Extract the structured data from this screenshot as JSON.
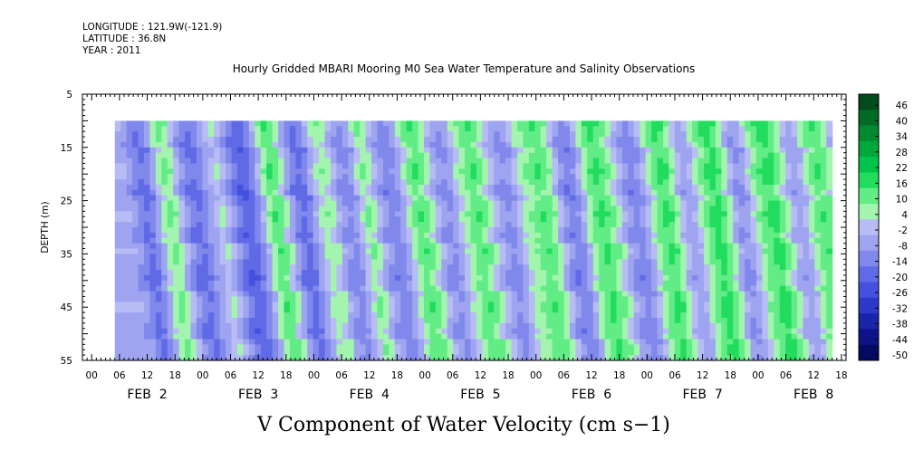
{
  "meta": {
    "longitude": "LONGITUDE : 121.9W(-121.9)",
    "latitude": "LATITUDE : 36.8N",
    "year": "YEAR : 2011"
  },
  "chart_data": {
    "type": "heatmap",
    "title": "Hourly Gridded MBARI Mooring M0 Sea Water Temperature and Salinity Observations",
    "bottom_title": "V Component of Water Velocity (cm s−1)",
    "ylabel": "DEPTH (m)",
    "y_ticks": [
      "5",
      "15",
      "25",
      "35",
      "45",
      "55"
    ],
    "y_range": [
      5,
      55
    ],
    "y_inverted": true,
    "data_depth_range": [
      10,
      55
    ],
    "x_hour_labels": [
      "00",
      "06",
      "12",
      "18",
      "00",
      "06",
      "12",
      "18",
      "00",
      "06",
      "12",
      "18",
      "00",
      "06",
      "12",
      "18",
      "00",
      "06",
      "12",
      "18",
      "00",
      "06",
      "12",
      "18",
      "00",
      "06",
      "12",
      "18"
    ],
    "x_day_labels": [
      "FEB  2",
      "FEB  3",
      "FEB  4",
      "FEB  5",
      "FEB  6",
      "FEB  7",
      "FEB  8"
    ],
    "x_range_hours": [
      -2,
      163
    ],
    "data_time_range_hours": [
      5,
      160
    ],
    "colorbar_labels": [
      "46",
      "40",
      "34",
      "28",
      "22",
      "16",
      "10",
      "4",
      "-2",
      "-8",
      "-14",
      "-20",
      "-26",
      "-32",
      "-38",
      "-44",
      "-50"
    ],
    "colorbar_colors": [
      "#004a1c",
      "#006b26",
      "#008a30",
      "#00a83a",
      "#00c44a",
      "#22dc5e",
      "#62ec86",
      "#a2f4ae",
      "#b8bcf4",
      "#9ea4f0",
      "#8088ec",
      "#606ae6",
      "#4450de",
      "#2c38c8",
      "#1a24a8",
      "#0c1488",
      "#040a60"
    ],
    "colorbar_range": [
      -50,
      50
    ],
    "colorbar_step": 6,
    "field_columns_v": [
      -4,
      -8,
      -12,
      -16,
      -13,
      -6,
      4,
      9,
      6,
      -2,
      -9,
      -14,
      -16,
      -12,
      -6,
      -2,
      2,
      -3,
      -9,
      -15,
      -19,
      -18,
      -12,
      -4,
      6,
      13,
      11,
      3,
      -6,
      -13,
      -17,
      -13,
      -5,
      2,
      6,
      3,
      -4,
      -9,
      -11,
      -7,
      1,
      8,
      4,
      -3,
      -8,
      -12,
      -11,
      -6,
      2,
      9,
      13,
      10,
      4,
      -3,
      -8,
      -10,
      -6,
      1,
      6,
      11,
      13,
      9,
      3,
      -2,
      -7,
      -10,
      -8,
      -2,
      4,
      7,
      10,
      13,
      11,
      6,
      -2,
      -9,
      -13,
      -11,
      -4,
      5,
      12,
      15,
      12,
      8,
      2,
      -4,
      -9,
      -12,
      -9,
      -3,
      4,
      11,
      15,
      13,
      6,
      -1,
      -6,
      -4,
      3,
      9,
      14,
      17,
      12,
      5,
      -4,
      -9,
      -7,
      0,
      7,
      12,
      15,
      16,
      10,
      4,
      -3,
      -6,
      -3,
      4,
      10,
      13,
      11,
      5,
      -3
    ],
    "field_rows_depth_mod": [
      3,
      2,
      1,
      0,
      -1,
      -2,
      -1,
      0,
      2,
      3,
      2,
      0,
      -2,
      -3,
      -2,
      0,
      1,
      3,
      2,
      1,
      -1,
      -2,
      -1,
      1,
      2,
      1,
      0,
      -1,
      -2,
      -3,
      -2,
      -1,
      0,
      1,
      2,
      2,
      1,
      0,
      -1,
      -2,
      -1,
      0,
      1,
      1,
      0
    ]
  }
}
